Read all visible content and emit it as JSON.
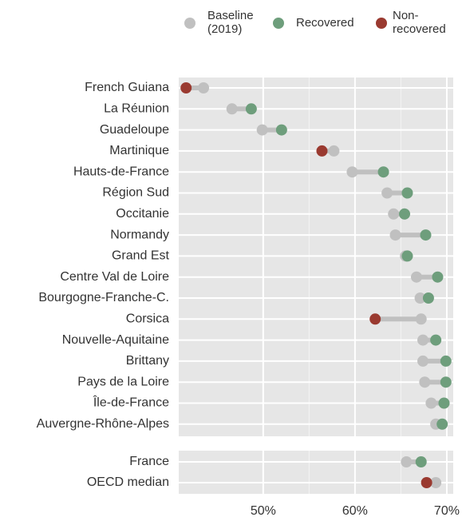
{
  "chart_data": {
    "type": "dumbbell",
    "categories": [
      "French Guiana",
      "La Réunion",
      "Guadeloupe",
      "Martinique",
      "Hauts-de-France",
      "Région Sud",
      "Occitanie",
      "Normandy",
      "Grand Est",
      "Centre Val de Loire",
      "Bourgogne-Franche-C.",
      "Corsica",
      "Nouvelle-Aquitaine",
      "Brittany",
      "Pays de la Loire",
      "Île-de-France",
      "Auvergne-Rhône-Alpes",
      "France",
      "OECD median"
    ],
    "series": [
      {
        "name": "Baseline (2019)",
        "color": "#c0c0c0",
        "values": [
          43.5,
          46.6,
          49.9,
          57.7,
          59.7,
          63.5,
          64.2,
          64.4,
          65.5,
          66.7,
          67.1,
          67.2,
          67.4,
          67.4,
          67.6,
          68.3,
          68.8,
          65.6,
          68.8
        ]
      },
      {
        "name": "Recovered",
        "color": "#6e9e7c",
        "values": [
          null,
          48.7,
          52.0,
          null,
          63.1,
          65.7,
          65.4,
          67.7,
          65.7,
          69.0,
          68.0,
          null,
          68.8,
          69.9,
          69.9,
          69.7,
          69.5,
          67.2,
          null
        ]
      },
      {
        "name": "Non-recovered",
        "color": "#9a3a30",
        "values": [
          41.6,
          null,
          null,
          56.4,
          null,
          null,
          null,
          null,
          null,
          null,
          null,
          62.2,
          null,
          null,
          null,
          null,
          null,
          null,
          67.8
        ]
      }
    ],
    "xlim": [
      40.8,
      70.7
    ],
    "xticks": [
      {
        "value": 50,
        "label": "50%"
      },
      {
        "value": 60,
        "label": "60%"
      },
      {
        "value": 70,
        "label": "70%"
      }
    ],
    "grid": true
  }
}
